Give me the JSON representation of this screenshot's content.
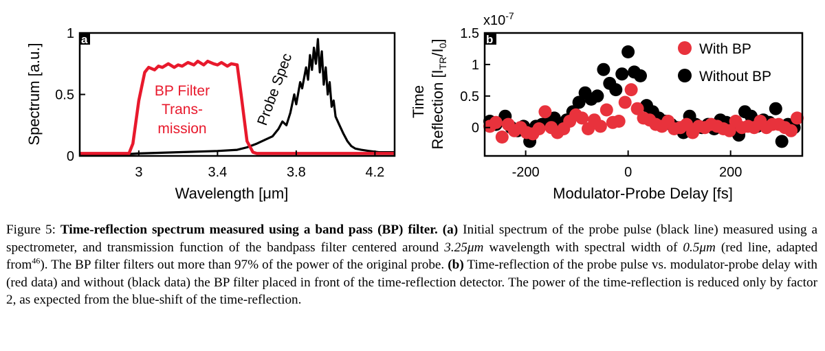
{
  "chart_data": [
    {
      "panel_label": "a",
      "type": "line",
      "xlabel": "Wavelength [μm]",
      "ylabel": "Spectrum [a.u.]",
      "xlim": [
        2.7,
        4.3
      ],
      "ylim": [
        0,
        1
      ],
      "xticks": [
        3,
        3.4,
        3.8,
        4.2
      ],
      "xtick_labels": [
        "3",
        "3.4",
        "3.8",
        "4.2"
      ],
      "yticks": [
        0,
        0.5,
        1
      ],
      "ytick_labels": [
        "0",
        "0.5",
        "1"
      ],
      "annotations": {
        "filter": [
          "BP Filter",
          "Trans-",
          "mission"
        ],
        "probe": "Probe Spec"
      },
      "series": [
        {
          "color": "#e8192c",
          "x": [
            2.7,
            2.95,
            2.97,
            3.0,
            3.03,
            3.05,
            3.08,
            3.1,
            3.12,
            3.15,
            3.18,
            3.2,
            3.22,
            3.25,
            3.28,
            3.3,
            3.33,
            3.35,
            3.38,
            3.4,
            3.42,
            3.45,
            3.47,
            3.5,
            3.52,
            3.55,
            3.58,
            3.6,
            4.3
          ],
          "y": [
            0.02,
            0.02,
            0.1,
            0.45,
            0.68,
            0.72,
            0.7,
            0.73,
            0.72,
            0.75,
            0.72,
            0.74,
            0.73,
            0.76,
            0.74,
            0.77,
            0.74,
            0.77,
            0.75,
            0.74,
            0.76,
            0.73,
            0.75,
            0.74,
            0.5,
            0.12,
            0.03,
            0.02,
            0.02
          ]
        },
        {
          "color": "#000000",
          "x": [
            2.7,
            2.9,
            3.0,
            3.2,
            3.4,
            3.5,
            3.55,
            3.6,
            3.64,
            3.68,
            3.71,
            3.73,
            3.75,
            3.77,
            3.79,
            3.8,
            3.82,
            3.83,
            3.85,
            3.86,
            3.87,
            3.88,
            3.89,
            3.9,
            3.91,
            3.92,
            3.93,
            3.94,
            3.95,
            3.96,
            3.97,
            3.98,
            3.99,
            4.0,
            4.02,
            4.04,
            4.06,
            4.08,
            4.1,
            4.13,
            4.17,
            4.22,
            4.3
          ],
          "y": [
            0.01,
            0.01,
            0.02,
            0.03,
            0.04,
            0.05,
            0.07,
            0.1,
            0.13,
            0.16,
            0.22,
            0.28,
            0.25,
            0.35,
            0.5,
            0.42,
            0.6,
            0.55,
            0.72,
            0.62,
            0.82,
            0.7,
            0.88,
            0.75,
            0.95,
            0.68,
            0.85,
            0.58,
            0.72,
            0.5,
            0.6,
            0.4,
            0.45,
            0.32,
            0.25,
            0.18,
            0.12,
            0.08,
            0.06,
            0.05,
            0.04,
            0.03,
            0.03
          ]
        }
      ]
    },
    {
      "panel_label": "b",
      "type": "scatter",
      "xlabel": "Modulator-Probe Delay [fs]",
      "ylabel_line1": "Time",
      "ylabel_line2": "Reflection [I",
      "ylabel_sub1": "TR",
      "ylabel_mid": "/I",
      "ylabel_sub2": "0",
      "ylabel_end": "]",
      "exponent_label": "x10",
      "exponent_power": "-7",
      "xlim": [
        -280,
        340
      ],
      "ylim": [
        -0.45,
        1.5
      ],
      "xticks": [
        -200,
        0,
        200
      ],
      "xtick_labels": [
        "-200",
        "0",
        "200"
      ],
      "yticks": [
        0,
        0.5,
        1,
        1.5
      ],
      "ytick_labels": [
        "0",
        "0.5",
        "1",
        "1.5"
      ],
      "legend_position": "top-right",
      "series": [
        {
          "name": "With BP",
          "color": "#e8323c",
          "x": [
            -270,
            -258,
            -246,
            -234,
            -222,
            -210,
            -198,
            -186,
            -174,
            -162,
            -150,
            -138,
            -126,
            -114,
            -102,
            -90,
            -78,
            -66,
            -54,
            -42,
            -30,
            -18,
            -6,
            6,
            18,
            30,
            42,
            54,
            66,
            78,
            90,
            102,
            114,
            126,
            138,
            150,
            162,
            174,
            186,
            198,
            210,
            222,
            234,
            246,
            258,
            270,
            282,
            294,
            306,
            318,
            330
          ],
          "y": [
            0.02,
            0.08,
            -0.15,
            0.05,
            -0.05,
            0.0,
            -0.08,
            -0.1,
            -0.02,
            0.25,
            0.0,
            -0.08,
            -0.02,
            0.1,
            0.2,
            0.15,
            -0.02,
            0.12,
            0.02,
            0.28,
            0.08,
            0.1,
            0.4,
            0.6,
            0.3,
            0.15,
            0.12,
            0.05,
            0.02,
            0.1,
            -0.02,
            0.0,
            0.05,
            -0.08,
            0.02,
            0.0,
            0.05,
            0.02,
            -0.02,
            -0.05,
            0.1,
            0.0,
            0.02,
            0.0,
            0.1,
            0.0,
            0.05,
            0.05,
            0.0,
            -0.05,
            0.15
          ]
        },
        {
          "name": "Without BP",
          "color": "#000000",
          "x": [
            -270,
            -258,
            -240,
            -228,
            -216,
            -204,
            -192,
            -180,
            -168,
            -156,
            -144,
            -132,
            -120,
            -108,
            -96,
            -84,
            -72,
            -60,
            -48,
            -36,
            -24,
            -12,
            0,
            12,
            24,
            36,
            48,
            60,
            72,
            84,
            96,
            108,
            120,
            132,
            144,
            156,
            168,
            180,
            192,
            204,
            216,
            228,
            240,
            252,
            264,
            276,
            288,
            300,
            312,
            324
          ],
          "y": [
            0.1,
            0.05,
            0.18,
            0.0,
            -0.05,
            0.02,
            -0.22,
            0.02,
            0.05,
            0.1,
            0.15,
            0.05,
            0.12,
            0.25,
            0.4,
            0.55,
            0.45,
            0.5,
            0.92,
            0.7,
            0.6,
            0.85,
            1.2,
            0.88,
            0.82,
            0.35,
            0.25,
            0.15,
            0.1,
            0.05,
            0.0,
            -0.08,
            0.18,
            0.05,
            0.0,
            0.05,
            -0.02,
            0.12,
            0.08,
            0.0,
            -0.12,
            0.25,
            0.18,
            0.02,
            0.12,
            0.08,
            0.3,
            -0.22,
            0.05,
            0.0
          ]
        }
      ]
    }
  ],
  "caption": {
    "fig_label": "Figure 5:",
    "bold_title": "Time-reflection spectrum measured using a band pass (BP) filter.",
    "part_a_label": "(a)",
    "part_a_text_1": "Initial spectrum of the probe pulse (black line) measured using a spectrometer, and transmission function of the bandpass filter centered around",
    "center_value": "3.25μm",
    "part_a_text_2": "wavelength with spectral width of",
    "width_value": "0.5μm",
    "part_a_text_3": "(red line, adapted from",
    "ref_number": "46",
    "part_a_text_4": "). The BP filter filters out more than 97% of the power of the original probe.",
    "part_b_label": "(b)",
    "part_b_text": "Time-reflection of the probe pulse vs. modulator-probe delay with (red data) and without (black data) the BP filter placed in front of the time-reflection detector. The power of the time-reflection is reduced only by factor 2, as expected from the blue-shift of the time-reflection."
  }
}
